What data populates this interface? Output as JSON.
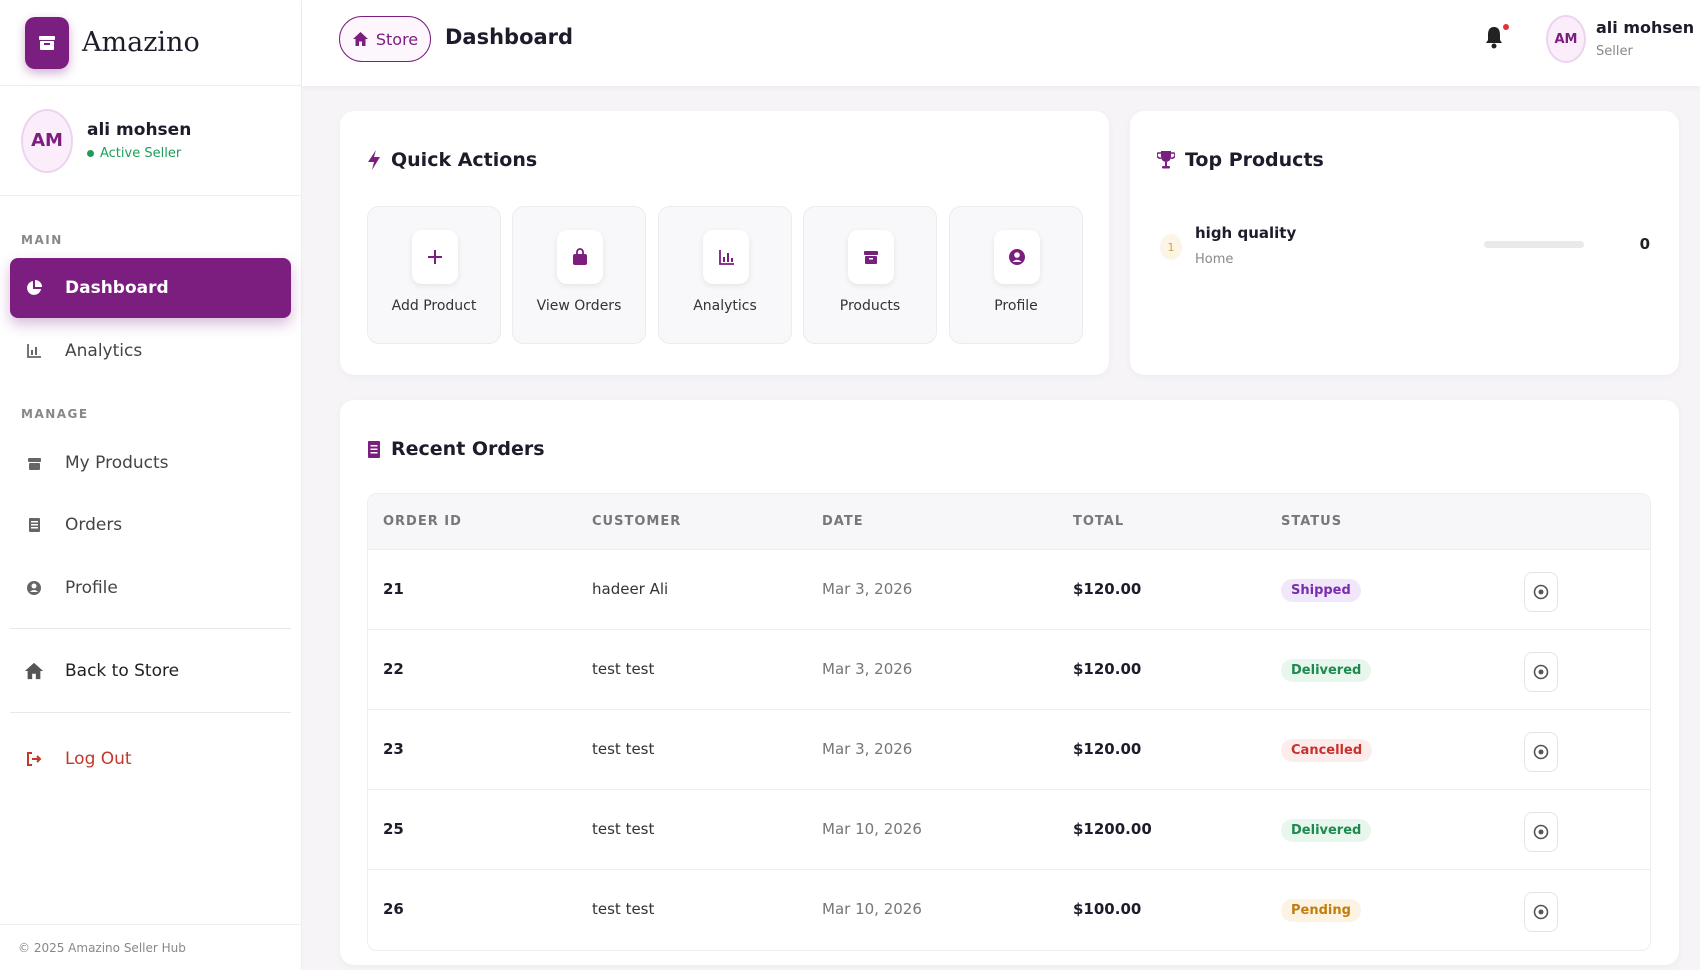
{
  "brand": {
    "name": "Amazino"
  },
  "sidebar": {
    "user": {
      "initials": "AM",
      "name": "ali mohsen",
      "status": "Active Seller"
    },
    "sections": {
      "main": "MAIN",
      "manage": "MANAGE"
    },
    "items": {
      "dashboard": "Dashboard",
      "analytics": "Analytics",
      "products": "My Products",
      "orders": "Orders",
      "profile": "Profile",
      "back_to_store": "Back to Store",
      "logout": "Log Out"
    },
    "copyright": "© 2025 Amazino Seller Hub"
  },
  "header": {
    "store_label": "Store",
    "title": "Dashboard",
    "user": {
      "initials": "AM",
      "name": "ali mohsen",
      "role": "Seller"
    }
  },
  "quick_actions": {
    "title": "Quick Actions",
    "items": [
      {
        "label": "Add Product",
        "icon": "plus-icon"
      },
      {
        "label": "View Orders",
        "icon": "shopping-bag-icon"
      },
      {
        "label": "Analytics",
        "icon": "chart-icon"
      },
      {
        "label": "Products",
        "icon": "box-icon"
      },
      {
        "label": "Profile",
        "icon": "user-circle-icon"
      }
    ]
  },
  "top_products": {
    "title": "Top Products",
    "items": [
      {
        "rank": "1",
        "name": "high quality",
        "category": "Home",
        "value": "0",
        "fill_fraction": 0
      }
    ]
  },
  "recent_orders": {
    "title": "Recent Orders",
    "columns": {
      "id": "ORDER ID",
      "customer": "CUSTOMER",
      "date": "DATE",
      "total": "TOTAL",
      "status": "STATUS"
    },
    "rows": [
      {
        "id": "21",
        "customer": "hadeer Ali",
        "date": "Mar 3, 2026",
        "total": "$120.00",
        "status": "Shipped",
        "status_key": "shipped"
      },
      {
        "id": "22",
        "customer": "test test",
        "date": "Mar 3, 2026",
        "total": "$120.00",
        "status": "Delivered",
        "status_key": "delivered"
      },
      {
        "id": "23",
        "customer": "test test",
        "date": "Mar 3, 2026",
        "total": "$120.00",
        "status": "Cancelled",
        "status_key": "cancelled"
      },
      {
        "id": "25",
        "customer": "test test",
        "date": "Mar 10, 2026",
        "total": "$1200.00",
        "status": "Delivered",
        "status_key": "delivered"
      },
      {
        "id": "26",
        "customer": "test test",
        "date": "Mar 10, 2026",
        "total": "$100.00",
        "status": "Pending",
        "status_key": "pending"
      }
    ]
  },
  "colors": {
    "accent": "#7a1f80",
    "success": "#1e9d5a",
    "danger": "#c9302c"
  }
}
